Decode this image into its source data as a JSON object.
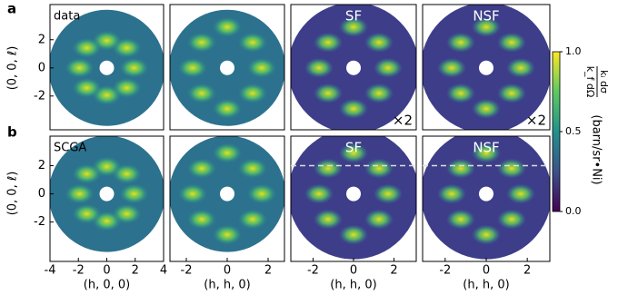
{
  "figure": {
    "panel_labels": [
      "a",
      "b"
    ],
    "ylabel": "(0, 0, ℓ)",
    "colorbar": {
      "numerator": "kᵢ dσ",
      "denominator": "k_f dΩ",
      "unit": "(barn/sr•Ni)",
      "lim": [
        0,
        1
      ],
      "ticks": [
        {
          "value": 0,
          "label": "0.0"
        },
        {
          "value": 0.5,
          "label": "0.5"
        },
        {
          "value": 1,
          "label": "1.0"
        }
      ]
    }
  },
  "chart_data": [
    {
      "type": "heatmap",
      "annotation": "data",
      "xlim": [
        -4,
        4
      ],
      "ylim": [
        -4.4,
        4.5
      ],
      "yticks": [
        -2,
        0,
        2
      ]
    },
    {
      "type": "heatmap",
      "xlim": [
        -2.8,
        2.8
      ],
      "ylim": [
        -4.4,
        4.5
      ]
    },
    {
      "type": "heatmap",
      "annotation": "SF",
      "note": "×2",
      "xlim": [
        -3.1,
        3.1
      ],
      "ylim": [
        -4.4,
        4.5
      ]
    },
    {
      "type": "heatmap",
      "annotation": "NSF",
      "note": "×2",
      "xlim": [
        -3.1,
        3.1
      ],
      "ylim": [
        -4.4,
        4.5
      ]
    },
    {
      "type": "heatmap",
      "annotation": "SCGA",
      "xlim": [
        -4,
        4
      ],
      "ylim": [
        -4.8,
        4.1
      ],
      "yticks": [
        -2,
        0,
        2
      ],
      "xticks": [
        -4,
        -2,
        0,
        2,
        4
      ],
      "xlabel": "(h, 0, 0)"
    },
    {
      "type": "heatmap",
      "xlim": [
        -2.8,
        2.8
      ],
      "ylim": [
        -4.8,
        4.1
      ],
      "xticks": [
        -2,
        0,
        2
      ],
      "xlabel": "(h, h, 0)"
    },
    {
      "type": "heatmap",
      "annotation": "SF",
      "xlim": [
        -3.1,
        3.1
      ],
      "ylim": [
        -4.8,
        4.1
      ],
      "xticks": [
        -2,
        0,
        2
      ],
      "xlabel": "(h, h, 0)",
      "hline": 2
    },
    {
      "type": "heatmap",
      "annotation": "NSF",
      "xlim": [
        -3.1,
        3.1
      ],
      "ylim": [
        -4.8,
        4.1
      ],
      "xticks": [
        -2,
        0,
        2
      ],
      "xlabel": "(h, h, 0)",
      "hline": 2
    }
  ]
}
